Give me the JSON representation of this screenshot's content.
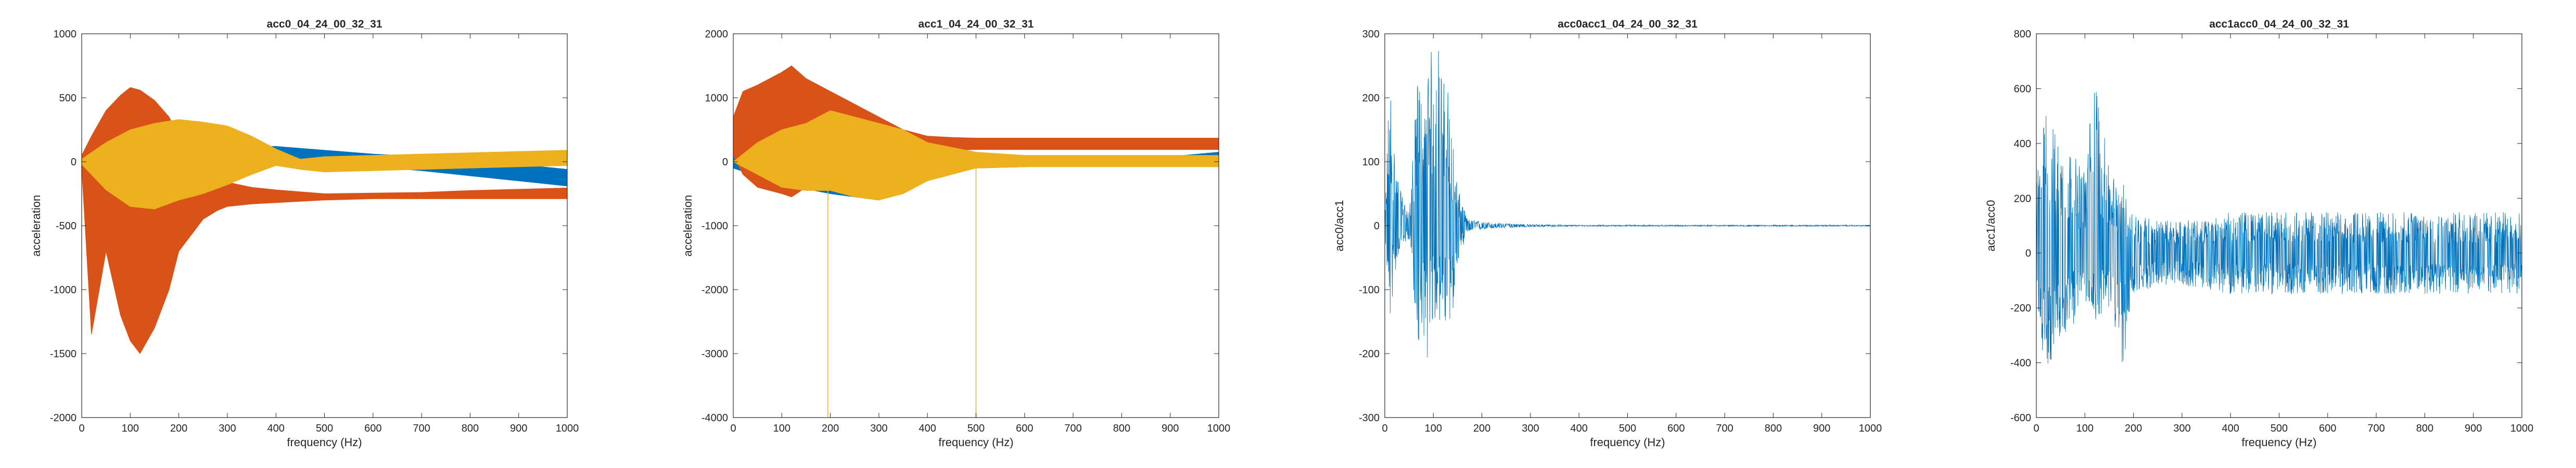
{
  "chart_data": [
    {
      "type": "area",
      "title": "acc0_04_24_00_32_31",
      "xlabel": "frequency (Hz)",
      "ylabel": "acceleration",
      "xlim": [
        0,
        1000
      ],
      "ylim": [
        -2000,
        1000
      ],
      "xticks": [
        "0",
        "100",
        "200",
        "300",
        "400",
        "500",
        "600",
        "700",
        "800",
        "900",
        "1000"
      ],
      "yticks": [
        "-2000",
        "-1500",
        "-1000",
        "-500",
        "0",
        "500",
        "1000"
      ],
      "grid": false,
      "series": [
        {
          "color": "#0072BD",
          "x": [
            0,
            50,
            100,
            150,
            200,
            250,
            300,
            350,
            400,
            500,
            600,
            700,
            800,
            900,
            1000
          ],
          "upper": [
            40,
            60,
            70,
            80,
            80,
            90,
            100,
            120,
            120,
            90,
            60,
            40,
            20,
            -20,
            -60
          ],
          "lower": [
            -30,
            -40,
            -40,
            -40,
            -40,
            -30,
            -20,
            0,
            30,
            0,
            -40,
            -70,
            -110,
            -150,
            -190
          ]
        },
        {
          "color": "#D95319",
          "x": [
            0,
            20,
            50,
            80,
            100,
            120,
            150,
            180,
            200,
            250,
            280,
            300,
            350,
            400,
            500,
            600,
            700,
            800,
            900,
            1000
          ],
          "upper": [
            50,
            200,
            400,
            520,
            580,
            560,
            480,
            350,
            200,
            -20,
            -120,
            -160,
            -200,
            -220,
            -250,
            -245,
            -240,
            -225,
            -215,
            -205
          ],
          "lower": [
            -50,
            -1350,
            -700,
            -1200,
            -1400,
            -1500,
            -1300,
            -1000,
            -700,
            -450,
            -380,
            -350,
            -330,
            -320,
            -300,
            -290,
            -290,
            -290,
            -290,
            -290
          ]
        },
        {
          "color": "#EDB120",
          "x": [
            0,
            50,
            100,
            150,
            200,
            250,
            300,
            350,
            400,
            450,
            500,
            600,
            700,
            800,
            900,
            1000
          ],
          "upper": [
            20,
            150,
            250,
            300,
            330,
            310,
            280,
            200,
            100,
            20,
            40,
            50,
            60,
            70,
            80,
            90
          ],
          "lower": [
            -20,
            -220,
            -350,
            -370,
            -300,
            -250,
            -180,
            -100,
            -30,
            -60,
            -80,
            -70,
            -60,
            -50,
            -40,
            -30
          ]
        }
      ]
    },
    {
      "type": "area",
      "title": "acc1_04_24_00_32_31",
      "xlabel": "frequency (Hz)",
      "ylabel": "acceleration",
      "xlim": [
        0,
        1000
      ],
      "ylim": [
        -4000,
        2000
      ],
      "xticks": [
        "0",
        "100",
        "200",
        "300",
        "400",
        "500",
        "600",
        "700",
        "800",
        "900",
        "1000"
      ],
      "yticks": [
        "-4000",
        "-3000",
        "-2000",
        "-1000",
        "0",
        "1000",
        "2000"
      ],
      "grid": false,
      "series": [
        {
          "color": "#0072BD",
          "x": [
            0,
            100,
            200,
            300,
            350,
            400,
            500,
            600,
            700,
            800,
            900,
            1000
          ],
          "upper": [
            100,
            300,
            350,
            350,
            300,
            200,
            100,
            50,
            50,
            50,
            80,
            150
          ],
          "lower": [
            -100,
            -350,
            -500,
            -600,
            -450,
            -200,
            -100,
            -80,
            -50,
            -50,
            -30,
            -20
          ]
        },
        {
          "color": "#D95319",
          "x": [
            0,
            20,
            50,
            100,
            120,
            150,
            200,
            250,
            300,
            350,
            400,
            450,
            500,
            600,
            700,
            800,
            900,
            1000
          ],
          "upper": [
            700,
            1100,
            1200,
            1400,
            1500,
            1300,
            1100,
            900,
            700,
            500,
            400,
            380,
            370,
            370,
            370,
            370,
            370,
            370
          ],
          "lower": [
            100,
            -200,
            -400,
            -500,
            -550,
            -400,
            -300,
            -100,
            100,
            150,
            170,
            180,
            190,
            190,
            190,
            190,
            190,
            190
          ]
        },
        {
          "color": "#EDB120",
          "x": [
            0,
            50,
            100,
            150,
            200,
            250,
            300,
            350,
            400,
            500,
            600,
            700,
            800,
            900,
            1000
          ],
          "upper": [
            0,
            300,
            500,
            600,
            800,
            700,
            600,
            500,
            300,
            150,
            100,
            100,
            100,
            100,
            100
          ],
          "lower": [
            0,
            -200,
            -400,
            -450,
            -450,
            -550,
            -600,
            -500,
            -300,
            -100,
            -80,
            -80,
            -80,
            -80,
            -80
          ]
        }
      ],
      "vlines": [
        195,
        500
      ],
      "vline_color": "#EDB120"
    },
    {
      "type": "line",
      "title": "acc0acc1_04_24_00_32_31",
      "xlabel": "frequency (Hz)",
      "ylabel": "acc0/acc1",
      "xlim": [
        0,
        1000
      ],
      "ylim": [
        -300,
        300
      ],
      "xticks": [
        "0",
        "100",
        "200",
        "300",
        "400",
        "500",
        "600",
        "700",
        "800",
        "900",
        "1000"
      ],
      "yticks": [
        "-300",
        "-200",
        "-100",
        "0",
        "100",
        "200",
        "300"
      ],
      "grid": false,
      "series": [
        {
          "color": "#0072BD",
          "envelope_x": [
            0,
            10,
            20,
            30,
            50,
            70,
            80,
            90,
            100,
            110,
            120,
            130,
            150,
            170,
            190,
            200,
            230,
            300,
            400,
            500,
            600,
            700,
            800,
            900,
            1000
          ],
          "envelope_upper": [
            5,
            250,
            120,
            60,
            20,
            260,
            150,
            270,
            280,
            290,
            230,
            220,
            60,
            10,
            8,
            6,
            4,
            2,
            1,
            1,
            1,
            1,
            1,
            1,
            1
          ],
          "envelope_lower": [
            -5,
            -160,
            -80,
            -40,
            -20,
            -200,
            -170,
            -220,
            -150,
            -160,
            -130,
            -210,
            -60,
            -10,
            -8,
            -6,
            -4,
            -2,
            -1,
            -1,
            -1,
            -1,
            -1,
            -1,
            -1
          ]
        }
      ]
    },
    {
      "type": "line",
      "title": "acc1acc0_04_24_00_32_31",
      "xlabel": "frequency (Hz)",
      "ylabel": "acc1/acc0",
      "xlim": [
        0,
        1000
      ],
      "ylim": [
        -600,
        800
      ],
      "xticks": [
        "0",
        "100",
        "200",
        "300",
        "400",
        "500",
        "600",
        "700",
        "800",
        "900",
        "1000"
      ],
      "yticks": [
        "-600",
        "-400",
        "-200",
        "0",
        "200",
        "400",
        "600",
        "800"
      ],
      "grid": false,
      "series": [
        {
          "color": "#0072BD",
          "envelope_x": [
            0,
            20,
            40,
            60,
            80,
            100,
            120,
            150,
            180,
            200,
            250,
            300,
            350,
            400,
            500,
            600,
            700,
            800,
            900,
            1000
          ],
          "envelope_upper": [
            300,
            520,
            450,
            400,
            350,
            300,
            680,
            300,
            250,
            150,
            120,
            120,
            120,
            150,
            150,
            150,
            150,
            150,
            150,
            150
          ],
          "envelope_lower": [
            -200,
            -450,
            -350,
            -300,
            -250,
            -200,
            -250,
            -200,
            -430,
            -150,
            -120,
            -120,
            -130,
            -150,
            -150,
            -150,
            -150,
            -150,
            -150,
            -150
          ]
        }
      ]
    }
  ]
}
